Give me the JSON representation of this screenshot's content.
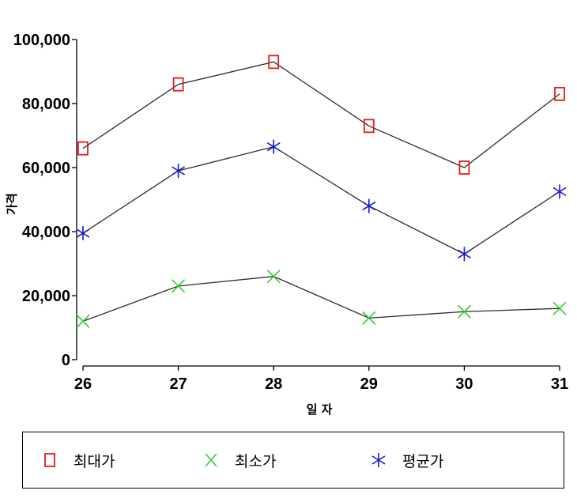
{
  "chart_data": {
    "type": "line",
    "title": "",
    "xlabel": "일 자",
    "ylabel": "가격",
    "x": [
      26,
      27,
      28,
      29,
      30,
      31
    ],
    "ylim": [
      0,
      100000
    ],
    "yticks": [
      "0",
      "20,000",
      "40,000",
      "60,000",
      "80,000",
      "100,000"
    ],
    "ytick_values": [
      0,
      20000,
      40000,
      60000,
      80000,
      100000
    ],
    "xticks": [
      "26",
      "27",
      "28",
      "29",
      "30",
      "31"
    ],
    "series": [
      {
        "name": "최대가",
        "marker": "square",
        "color": "#e41a1c",
        "values": [
          66000,
          86000,
          93000,
          73000,
          60000,
          83000
        ]
      },
      {
        "name": "최소가",
        "marker": "x",
        "color": "#33cc33",
        "values": [
          12000,
          23000,
          26000,
          13000,
          15000,
          16000
        ]
      },
      {
        "name": "평균가",
        "marker": "asterisk",
        "color": "#1a1acc",
        "values": [
          39500,
          59000,
          66500,
          48000,
          33000,
          52500
        ]
      }
    ],
    "legend_position": "bottom",
    "grid": false
  }
}
